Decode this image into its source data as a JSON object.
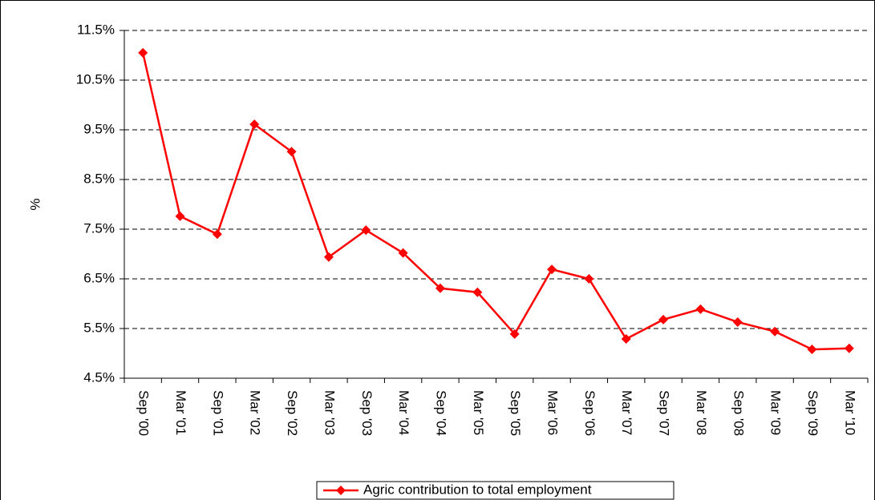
{
  "chart_data": {
    "type": "line",
    "y_label": "%",
    "categories": [
      "Sep '00",
      "Mar '01",
      "Sep '01",
      "Mar '02",
      "Sep '02",
      "Mar '03",
      "Sep '03",
      "Mar '04",
      "Sep '04",
      "Mar '05",
      "Sep '05",
      "Mar '06",
      "Sep '06",
      "Mar '07",
      "Sep '07",
      "Mar '08",
      "Sep '08",
      "Mar '09",
      "Sep '09",
      "Mar '10"
    ],
    "series": [
      {
        "name": "Agric contribution to total employment",
        "color": "#ff0000",
        "values": [
          11.05,
          7.76,
          7.4,
          9.61,
          9.06,
          6.94,
          7.48,
          7.02,
          6.31,
          6.23,
          5.39,
          6.69,
          6.5,
          5.29,
          5.68,
          5.89,
          5.63,
          5.44,
          5.08,
          5.1
        ]
      }
    ],
    "ylim": [
      4.5,
      11.5
    ],
    "yticks": [
      {
        "value": 4.5,
        "label": "4.5%"
      },
      {
        "value": 5.5,
        "label": "5.5%"
      },
      {
        "value": 6.5,
        "label": "6.5%"
      },
      {
        "value": 7.5,
        "label": "7.5%"
      },
      {
        "value": 8.5,
        "label": "8.5%"
      },
      {
        "value": 9.5,
        "label": "9.5%"
      },
      {
        "value": 10.5,
        "label": "10.5%"
      },
      {
        "value": 11.5,
        "label": "11.5%"
      }
    ],
    "grid": true,
    "legend": "bottom"
  }
}
